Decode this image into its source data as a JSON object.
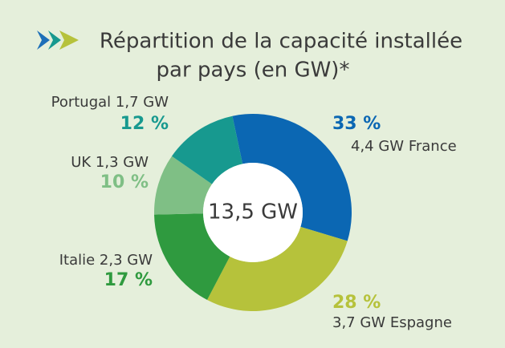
{
  "chart_data": {
    "type": "donut",
    "title": [
      "Répartition de la capacité installée",
      "par pays (en GW)*"
    ],
    "center_label": "13,5 GW",
    "categories": [
      "4,4 GW France",
      "3,7 GW Espagne",
      "Italie 2,3 GW",
      "UK 1,3 GW",
      "Portugal 1,7 GW"
    ],
    "values": [
      33,
      28,
      17,
      10,
      12
    ],
    "value_labels": [
      "33 %",
      "28 %",
      "17 %",
      "10 %",
      "12 %"
    ],
    "colors": [
      "#0b67b3",
      "#b6c23b",
      "#2f9a3f",
      "#7fbf85",
      "#17998f"
    ]
  }
}
